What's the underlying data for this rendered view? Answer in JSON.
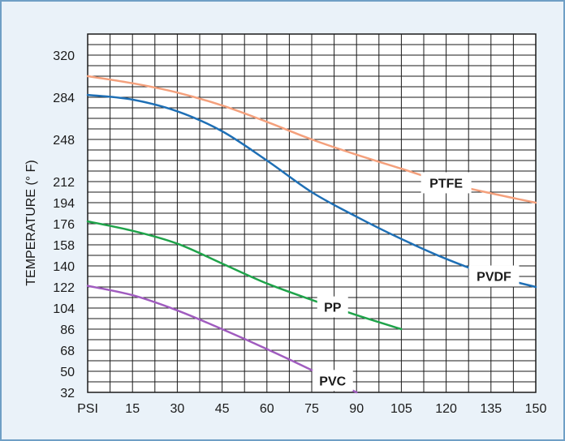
{
  "chart_data": {
    "type": "line",
    "title": "",
    "xlabel": "",
    "ylabel": "TEMPERATURE (° F)",
    "x_tick_labels": [
      "PSI",
      "15",
      "30",
      "45",
      "60",
      "75",
      "90",
      "105",
      "120",
      "135",
      "150"
    ],
    "x_ticks": [
      0,
      15,
      30,
      45,
      60,
      75,
      90,
      105,
      120,
      135,
      150
    ],
    "y_ticks": [
      32,
      50,
      68,
      86,
      104,
      122,
      140,
      158,
      176,
      194,
      212,
      248,
      284,
      320
    ],
    "y_tick_labels": [
      "32",
      "50",
      "68",
      "86",
      "104",
      "122",
      "140",
      "158",
      "176",
      "194",
      "212",
      "248",
      "284",
      "320"
    ],
    "xlim": [
      0,
      150
    ],
    "grid": true,
    "legend": "inline labels on curves",
    "series": [
      {
        "name": "PTFE",
        "color": "#f4a07c",
        "label_x": 120,
        "points": [
          [
            0,
            302
          ],
          [
            15,
            296
          ],
          [
            30,
            288
          ],
          [
            45,
            277
          ],
          [
            60,
            263
          ],
          [
            75,
            248
          ],
          [
            90,
            235
          ],
          [
            105,
            223
          ],
          [
            120,
            211
          ],
          [
            135,
            202
          ],
          [
            150,
            194
          ]
        ]
      },
      {
        "name": "PVDF",
        "color": "#1e6fb5",
        "label_x": 136,
        "points": [
          [
            0,
            286
          ],
          [
            15,
            282
          ],
          [
            30,
            272
          ],
          [
            45,
            255
          ],
          [
            60,
            230
          ],
          [
            75,
            203
          ],
          [
            90,
            182
          ],
          [
            105,
            163
          ],
          [
            120,
            146
          ],
          [
            135,
            132
          ],
          [
            150,
            122
          ]
        ]
      },
      {
        "name": "PP",
        "color": "#1fa34a",
        "label_x": 82,
        "points": [
          [
            0,
            178
          ],
          [
            15,
            170
          ],
          [
            30,
            159
          ],
          [
            45,
            142
          ],
          [
            60,
            125
          ],
          [
            75,
            111
          ],
          [
            90,
            98
          ],
          [
            105,
            86
          ]
        ]
      },
      {
        "name": "PVC",
        "color": "#a05cbf",
        "label_x": 82,
        "points": [
          [
            0,
            123
          ],
          [
            15,
            115
          ],
          [
            30,
            102
          ],
          [
            45,
            86
          ],
          [
            60,
            69
          ],
          [
            75,
            51
          ],
          [
            90,
            32
          ]
        ]
      }
    ]
  }
}
